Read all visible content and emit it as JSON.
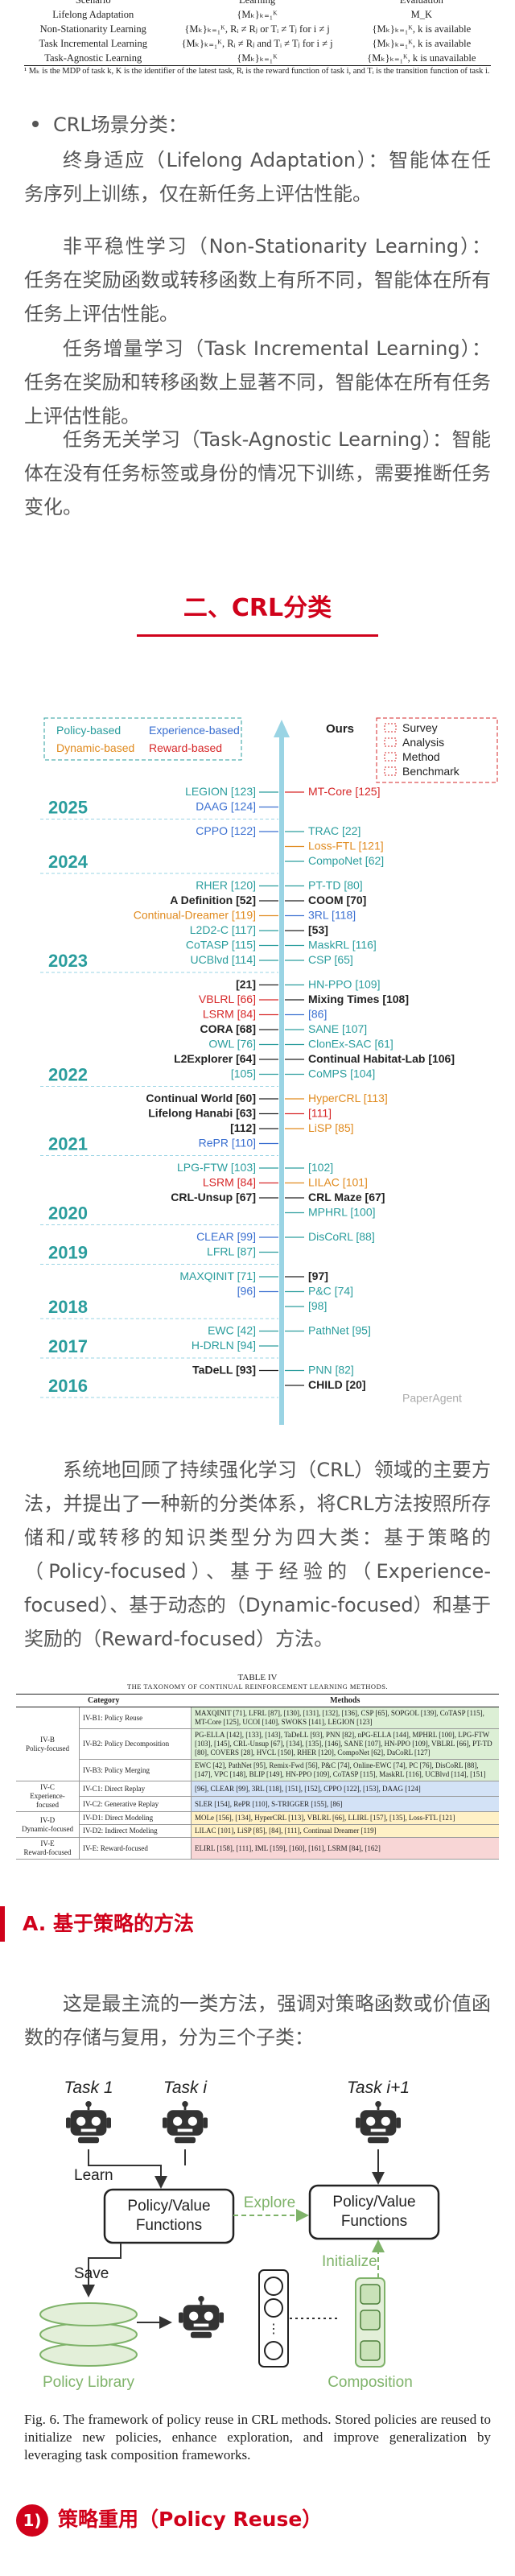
{
  "scenario_table": {
    "header": [
      "Scenario",
      "Learning",
      "Evaluation"
    ],
    "rows": [
      [
        "Lifelong Adaptation",
        "{Mₖ}ₖ₌₁ᴷ",
        "M_K"
      ],
      [
        "Non-Stationarity Learning",
        "{Mₖ}ₖ₌₁ᴷ, Rᵢ ≠ Rⱼ or Tᵢ ≠ Tⱼ for i ≠ j",
        "{Mₖ}ₖ₌₁ᴷ, k is available"
      ],
      [
        "Task Incremental Learning",
        "{Mₖ}ₖ₌₁ᴷ, Rᵢ ≠ Rⱼ and Tᵢ ≠ Tⱼ for i ≠ j",
        "{Mₖ}ₖ₌₁ᴷ, k is available"
      ],
      [
        "Task-Agnostic Learning",
        "{Mₖ}ₖ₌₁ᴷ",
        "{Mₖ}ₖ₌₁ᴷ, k is unavailable"
      ]
    ],
    "footnote": "¹ Mₖ is the MDP of task k, K is the identifier of the latest task, Rᵢ is the reward function of task i, and Tᵢ is the transition function of task i."
  },
  "bullet": "CRL场景分类：",
  "scenarios": [
    "终身适应（Lifelong Adaptation）：智能体在任务序列上训练，仅在新任务上评估性能。",
    "非平稳性学习（Non-Stationarity Learning）：任务在奖励函数或转移函数上有所不同，智能体在所有任务上评估性能。",
    "任务增量学习（Task Incremental Learning）：任务在奖励和转移函数上显著不同，智能体在所有任务上评估性能。",
    "任务无关学习（Task-Agnostic Learning）：智能体在没有任务标签或身份的情况下训练，需要推断任务变化。"
  ],
  "section_heading": "二、CRL分类",
  "timeline": {
    "legend": {
      "categories": [
        {
          "label": "Policy-based",
          "color": "#2a9d9d"
        },
        {
          "label": "Experience-based",
          "color": "#3a6fd0"
        },
        {
          "label": "Dynamic-based",
          "color": "#e08a1e"
        },
        {
          "label": "Reward-based",
          "color": "#d62728"
        }
      ],
      "ours": "Ours",
      "types": [
        "Survey",
        "Analysis",
        "Method",
        "Benchmark"
      ]
    },
    "years": [
      {
        "year": "2025",
        "left": [
          {
            "label": "LEGION [123]",
            "color": "#2a9d9d"
          },
          {
            "label": "DAAG [124]",
            "color": "#3a6fd0"
          }
        ],
        "right": [
          {
            "label": "MT-Core [125]",
            "color": "#d62728"
          }
        ]
      },
      {
        "year": "2024",
        "left": [
          {
            "label": "CPPO [122]",
            "color": "#3a6fd0"
          }
        ],
        "right": [
          {
            "label": "TRAC [22]",
            "color": "#2a9d9d"
          },
          {
            "label": "Loss-FTL [121]",
            "color": "#e08a1e"
          },
          {
            "label": "CompoNet [62]",
            "color": "#2a9d9d"
          }
        ]
      },
      {
        "year": "2023",
        "left": [
          {
            "label": "RHER [120]",
            "color": "#2a9d9d"
          },
          {
            "label": "A Definition [52]",
            "color": "#222222"
          },
          {
            "label": "Continual-Dreamer [119]",
            "color": "#e08a1e"
          },
          {
            "label": "L2D2-C [117]",
            "color": "#2a9d9d"
          },
          {
            "label": "CoTASP [115]",
            "color": "#2a9d9d"
          },
          {
            "label": "UCBlvd [114]",
            "color": "#2a9d9d"
          }
        ],
        "right": [
          {
            "label": "PT-TD [80]",
            "color": "#2a9d9d"
          },
          {
            "label": "COOM [70]",
            "color": "#222222"
          },
          {
            "label": "3RL [118]",
            "color": "#3a6fd0"
          },
          {
            "label": "[53]",
            "color": "#222222"
          },
          {
            "label": "MaskRL [116]",
            "color": "#2a9d9d"
          },
          {
            "label": "CSP [65]",
            "color": "#2a9d9d"
          }
        ]
      },
      {
        "year": "2022",
        "left": [
          {
            "label": "[21]",
            "color": "#222222"
          },
          {
            "label": "VBLRL [66]",
            "color": "#d62728"
          },
          {
            "label": "LSRM [84]",
            "color": "#d62728"
          },
          {
            "label": "CORA [68]",
            "color": "#222222"
          },
          {
            "label": "OWL [76]",
            "color": "#2a9d9d"
          },
          {
            "label": "L2Explorer [64]",
            "color": "#222222"
          },
          {
            "label": "[105]",
            "color": "#2a9d9d"
          }
        ],
        "right": [
          {
            "label": "HN-PPO [109]",
            "color": "#2a9d9d"
          },
          {
            "label": "Mixing Times [108]",
            "color": "#222222"
          },
          {
            "label": "[86]",
            "color": "#3a6fd0"
          },
          {
            "label": "SANE [107]",
            "color": "#2a9d9d"
          },
          {
            "label": "ClonEx-SAC [61]",
            "color": "#2a9d9d"
          },
          {
            "label": "Continual Habitat-Lab [106]",
            "color": "#222222"
          },
          {
            "label": "CoMPS [104]",
            "color": "#2a9d9d"
          }
        ]
      },
      {
        "year": "2021",
        "left": [
          {
            "label": "Continual World [60]",
            "color": "#222222"
          },
          {
            "label": "Lifelong Hanabi [63]",
            "color": "#222222"
          },
          {
            "label": "[112]",
            "color": "#222222"
          },
          {
            "label": "RePR [110]",
            "color": "#3a6fd0"
          }
        ],
        "right": [
          {
            "label": "HyperCRL [113]",
            "color": "#e08a1e"
          },
          {
            "label": "[111]",
            "color": "#d62728"
          },
          {
            "label": "LiSP [85]",
            "color": "#e08a1e"
          }
        ]
      },
      {
        "year": "2020",
        "left": [
          {
            "label": "LPG-FTW [103]",
            "color": "#2a9d9d"
          },
          {
            "label": "LSRM [84]",
            "color": "#d62728"
          },
          {
            "label": "CRL-Unsup [67]",
            "color": "#222222"
          }
        ],
        "right": [
          {
            "label": "[102]",
            "color": "#2a9d9d"
          },
          {
            "label": "LILAC [101]",
            "color": "#e08a1e"
          },
          {
            "label": "CRL Maze [67]",
            "color": "#222222"
          },
          {
            "label": "MPHRL [100]",
            "color": "#2a9d9d"
          }
        ]
      },
      {
        "year": "2019",
        "left": [
          {
            "label": "CLEAR [99]",
            "color": "#3a6fd0"
          },
          {
            "label": "LFRL [87]",
            "color": "#2a9d9d"
          }
        ],
        "right": [
          {
            "label": "DisCoRL [88]",
            "color": "#2a9d9d"
          }
        ]
      },
      {
        "year": "2018",
        "left": [
          {
            "label": "MAXQINIT [71]",
            "color": "#2a9d9d"
          },
          {
            "label": "[96]",
            "color": "#3a6fd0"
          }
        ],
        "right": [
          {
            "label": "[97]",
            "color": "#222222"
          },
          {
            "label": "P&C [74]",
            "color": "#2a9d9d"
          },
          {
            "label": "[98]",
            "color": "#2a9d9d"
          }
        ]
      },
      {
        "year": "2017",
        "left": [
          {
            "label": "EWC [42]",
            "color": "#2a9d9d"
          },
          {
            "label": "H-DRLN [94]",
            "color": "#2a9d9d"
          }
        ],
        "right": [
          {
            "label": "PathNet [95]",
            "color": "#2a9d9d"
          }
        ]
      },
      {
        "year": "2016",
        "left": [
          {
            "label": "TaDeLL [93]",
            "color": "#222222"
          }
        ],
        "right": [
          {
            "label": "PNN [82]",
            "color": "#2a9d9d"
          },
          {
            "label": "CHILD [20]",
            "color": "#222222"
          }
        ]
      }
    ],
    "watermark": "PaperAgent"
  },
  "overview": "系统地回顾了持续强化学习（CRL）领域的主要方法，并提出了一种新的分类体系，将CRL方法按照所存储和/或转移的知识类型分为四大类：基于策略的（Policy-focused）、基于经验的（Experience-focused）、基于动态的（Dynamic-focused）和基于奖励的（Reward-focused）方法。",
  "taxonomy_table": {
    "title": "TABLE IV",
    "caption": "THE TAXONOMY OF CONTINUAL REINFORCEMENT LEARNING METHODS.",
    "header": [
      "Category",
      "Methods"
    ],
    "groups": [
      {
        "id": "IV-B",
        "name": "Policy-focused",
        "color": "#dcefd5",
        "rows": [
          {
            "sub": "IV-B1: Policy Reuse",
            "methods": "MAXQINIT [71], LFRL [87], [130], [131], [132], [136], CSP [65], SOPGOL [139], CoTASP [115], MT-Core [125], UCOI [140], SWOKS [141], LEGION [123]"
          },
          {
            "sub": "IV-B2: Policy Decomposition",
            "methods": "PG-ELLA [142], [133], [143], TaDeLL [93], PNN [82], nPG-ELLA [144], MPHRL [100], LPG-FTW [103], [145], CRL-Unsup [67], [134], [135], [146], SANE [107], HN-PPO [109], VBLRL [66], PT-TD [80], COVERS [28], HVCL [150], RHER [120], CompoNet [62], DaCoRL [127]"
          },
          {
            "sub": "IV-B3: Policy Merging",
            "methods": "EWC [42], PathNet [95], Remix-Fwd [56], P&C [74], Online-EWC [74], PC [76], DisCoRL [88], [147], VPC [148], BLIP [149], HN-PPO [109], CoTASP [115], MaskRL [116], UCBlvd [114], [151]"
          }
        ]
      },
      {
        "id": "IV-C",
        "name": "Experience-focused",
        "color": "#d3e2f6",
        "rows": [
          {
            "sub": "IV-C1: Direct Replay",
            "methods": "[96], CLEAR [99], 3RL [118], [151], [152], CPPO [122], [153], DAAG [124]"
          },
          {
            "sub": "IV-C2: Generative Replay",
            "methods": "SLER [154], RePR [110], S-TRIGGER [155], [86]"
          }
        ]
      },
      {
        "id": "IV-D",
        "name": "Dynamic-focused",
        "color": "#fff1c6",
        "rows": [
          {
            "sub": "IV-D1: Direct Modeling",
            "methods": "MOLe [156], [134], HyperCRL [113], VBLRL [66], LLIRL [157], [135], Loss-FTL [121]"
          },
          {
            "sub": "IV-D2: Indirect Modeling",
            "methods": "LILAC [101], LiSP [85], [84], [111], Continual Dreamer [119]"
          }
        ]
      },
      {
        "id": "IV-E",
        "name": "Reward-focused",
        "color": "#f8d6d6",
        "rows": [
          {
            "sub": "IV-E: Reward-focused",
            "methods": "ELIRL [158], [111], IML [159], [160], [161], LSRM [84], [162]"
          }
        ]
      }
    ]
  },
  "subsection_heading": "A. 基于策略的方法",
  "subsection_text": "这是最主流的一类方法，强调对策略函数或价值函数的存储与复用，分为三个子类：",
  "figure": {
    "task_first": "Task 1",
    "task_i": "Task i",
    "task_next": "Task i+1",
    "learn": "Learn",
    "save": "Save",
    "explore": "Explore",
    "initialize": "Initialize",
    "functions_left": [
      "Policy/Value",
      "Functions"
    ],
    "functions_right": [
      "Policy/Value",
      "Functions"
    ],
    "library": "Policy Library",
    "composition": "Composition",
    "caption": "Fig. 6.  The framework of policy reuse in CRL methods. Stored policies are reused to initialize new policies, enhance exploration, and improve generalization by leveraging task composition frameworks."
  },
  "item_heading": {
    "number": "1)",
    "title": "策略重用（Policy Reuse）"
  }
}
